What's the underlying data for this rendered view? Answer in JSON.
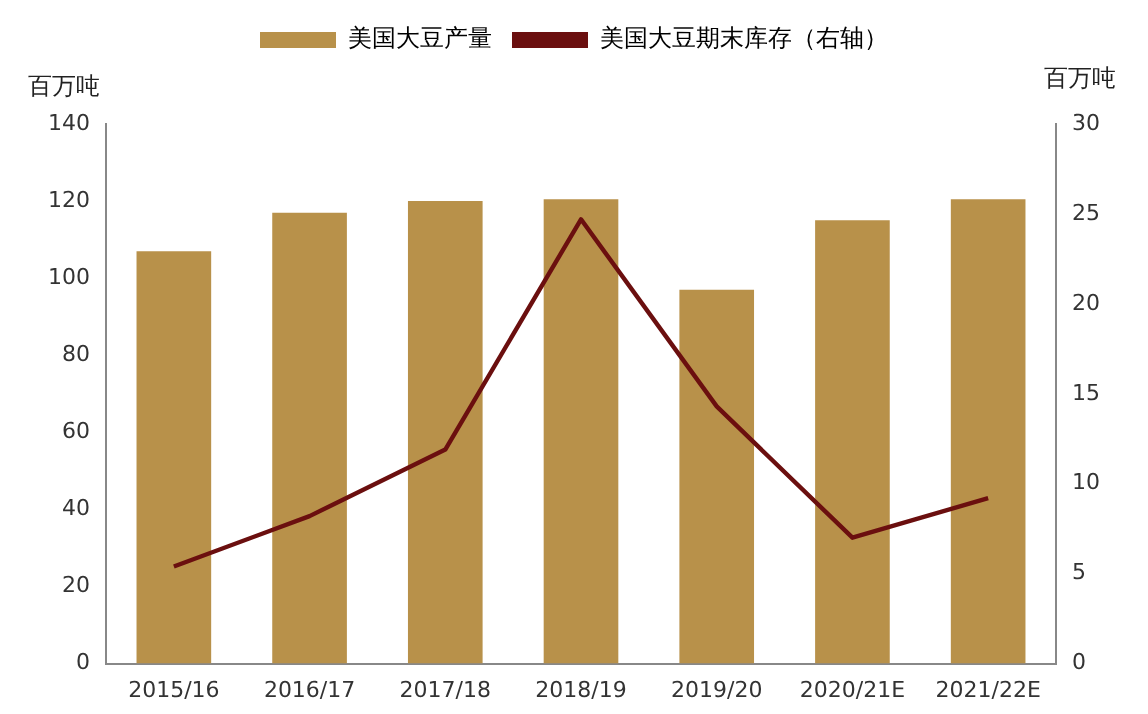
{
  "chart_data": {
    "type": "bar",
    "ylabel": "百万吨",
    "y2label": "百万吨",
    "categories": [
      "2015/16",
      "2016/17",
      "2017/18",
      "2018/19",
      "2019/20",
      "2020/21E",
      "2021/22E"
    ],
    "series": [
      {
        "name": "美国大豆产量",
        "color": "#b8914a",
        "values": [
          107,
          117,
          120,
          120.5,
          97,
          115,
          120.5
        ]
      },
      {
        "name": "美国大豆期末库存（右轴）",
        "type": "line",
        "axis": "y2",
        "color": "#6b0f0f",
        "marker": "none",
        "line_style": "solid",
        "values": [
          5.4,
          8.2,
          11.9,
          24.7,
          14.3,
          7.0,
          9.2
        ]
      }
    ],
    "ylim": [
      0,
      140
    ],
    "yticks": [
      0,
      20,
      40,
      60,
      80,
      100,
      120,
      140
    ],
    "y2lim": [
      0,
      30
    ],
    "y2ticks": [
      0,
      5,
      10,
      15,
      20,
      25,
      30
    ],
    "grid": false,
    "legend": "top"
  }
}
